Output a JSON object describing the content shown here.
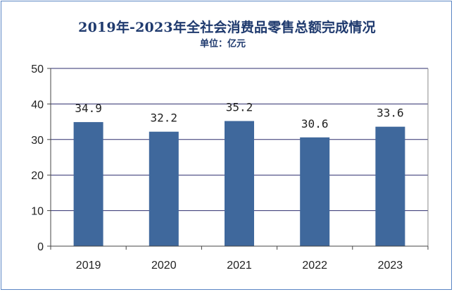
{
  "chart_data": {
    "type": "bar",
    "title": "2019年-2023年全社会消费品零售总额完成情况",
    "unit_label": "单位：亿元",
    "categories": [
      "2019",
      "2020",
      "2021",
      "2022",
      "2023"
    ],
    "values": [
      34.9,
      32.2,
      35.2,
      30.6,
      33.6
    ],
    "data_labels": [
      "34.9",
      "32.2",
      "35.2",
      "30.6",
      "33.6"
    ],
    "ylim": [
      0,
      50
    ],
    "y_ticks": [
      "0",
      "10",
      "20",
      "30",
      "40",
      "50"
    ],
    "gridlines": true,
    "legend": "none",
    "bar_color": "#3f689c",
    "grid_color": "#2e2e6e"
  }
}
